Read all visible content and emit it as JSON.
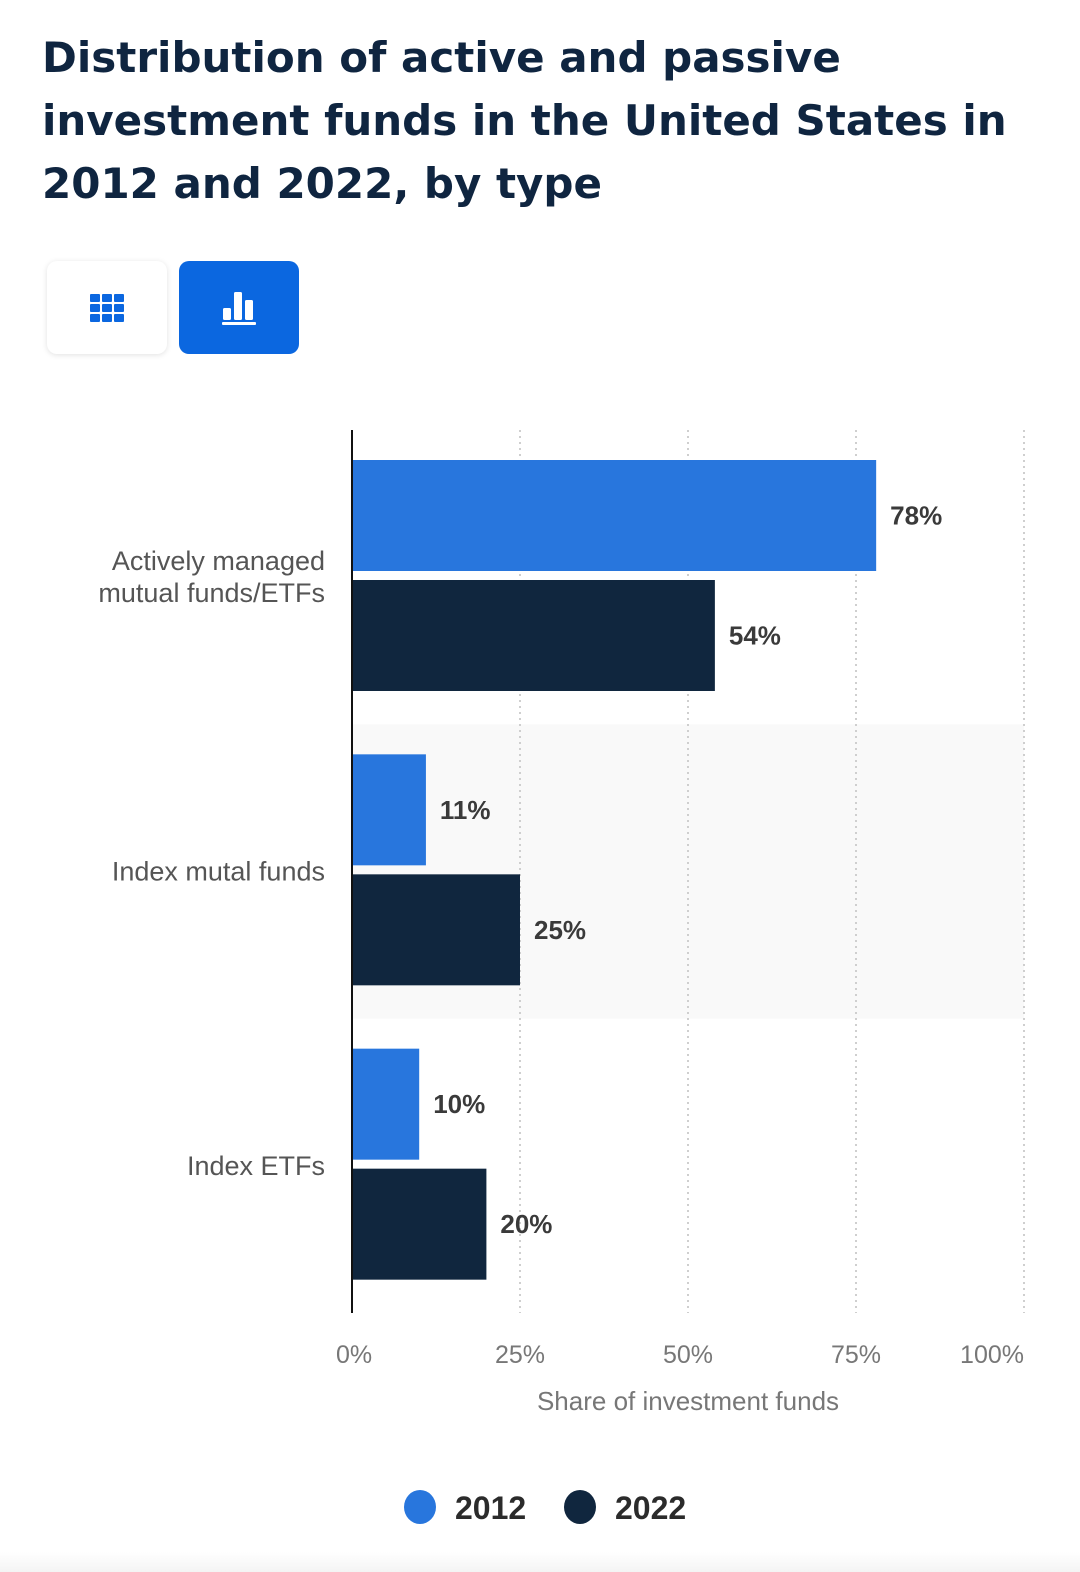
{
  "title": "Distribution of active and passive investment funds in the United States in 2012 and 2022, by type",
  "view_toggle": {
    "table_icon": "table-grid-icon",
    "chart_icon": "bar-chart-icon",
    "active": "chart"
  },
  "chart_data": {
    "type": "bar",
    "orientation": "horizontal",
    "title": "Distribution of active and passive investment funds in the United States in 2012 and 2022, by type",
    "categories": [
      [
        "Actively managed",
        "mutual funds/ETFs"
      ],
      [
        "Index mutal funds"
      ],
      [
        "Index ETFs"
      ]
    ],
    "series": [
      {
        "name": "2012",
        "color": "#2876dd",
        "values": [
          78,
          11,
          10
        ],
        "labels": [
          "78%",
          "11%",
          "10%"
        ]
      },
      {
        "name": "2022",
        "color": "#10263e",
        "values": [
          54,
          25,
          20
        ],
        "labels": [
          "54%",
          "25%",
          "20%"
        ]
      }
    ],
    "xlabel": "Share of investment funds",
    "ylabel": "",
    "xlim": [
      0,
      100
    ],
    "xticks": [
      "0%",
      "25%",
      "50%",
      "75%",
      "100%"
    ],
    "grid": true,
    "legend": "bottom-center"
  }
}
